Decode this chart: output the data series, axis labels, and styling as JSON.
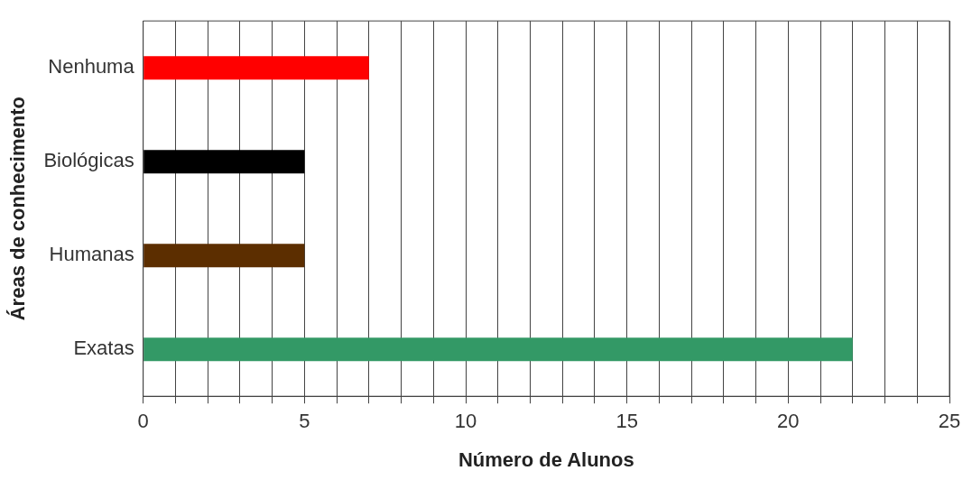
{
  "chart_data": {
    "type": "bar",
    "orientation": "horizontal",
    "xlabel": "Número de Alunos",
    "ylabel": "Áreas de conhecimento",
    "categories": [
      "Nenhuma",
      "Biológicas",
      "Humanas",
      "Exatas"
    ],
    "values": [
      7,
      5,
      5,
      22
    ],
    "colors": [
      "#ff0000",
      "#000000",
      "#5c2e00",
      "#339966"
    ],
    "xlim": [
      0,
      25
    ],
    "xticks": [
      0,
      {
        "value": 1,
        "label": null
      },
      {
        "value": 2,
        "label": null
      },
      {
        "value": 3,
        "label": null
      },
      {
        "value": 4,
        "label": null
      },
      5,
      {
        "value": 6,
        "label": null
      },
      {
        "value": 7,
        "label": null
      },
      {
        "value": 8,
        "label": null
      },
      {
        "value": 9,
        "label": null
      },
      10,
      {
        "value": 11,
        "label": null
      },
      {
        "value": 12,
        "label": null
      },
      {
        "value": 13,
        "label": null
      },
      {
        "value": 14,
        "label": null
      },
      15,
      {
        "value": 16,
        "label": null
      },
      {
        "value": 17,
        "label": null
      },
      {
        "value": 18,
        "label": null
      },
      {
        "value": 19,
        "label": null
      },
      20,
      {
        "value": 21,
        "label": null
      },
      {
        "value": 22,
        "label": null
      },
      {
        "value": 23,
        "label": null
      },
      {
        "value": 24,
        "label": null
      },
      25
    ],
    "grid": "x",
    "legend": false
  }
}
